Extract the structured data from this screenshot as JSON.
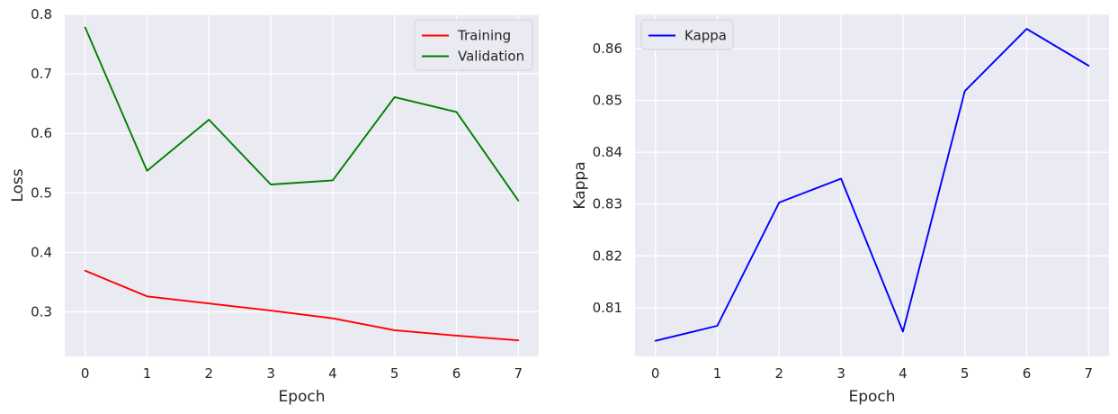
{
  "chart_data": [
    {
      "type": "line",
      "xlabel": "Epoch",
      "ylabel": "Loss",
      "xlim": [
        -0.33,
        7.33
      ],
      "ylim": [
        0.225,
        0.8
      ],
      "xticks": [
        0,
        1,
        2,
        3,
        4,
        5,
        6,
        7
      ],
      "xtick_labels": [
        "0",
        "1",
        "2",
        "3",
        "4",
        "5",
        "6",
        "7"
      ],
      "yticks": [
        0.3,
        0.4,
        0.5,
        0.6,
        0.7,
        0.8
      ],
      "ytick_labels": [
        "0.3",
        "0.4",
        "0.5",
        "0.6",
        "0.7",
        "0.8"
      ],
      "grid": true,
      "legend_position": "top-right",
      "x": [
        0,
        1,
        2,
        3,
        4,
        5,
        6,
        7
      ],
      "series": [
        {
          "name": "Training",
          "color": "#ff0000",
          "values": [
            0.369,
            0.326,
            0.314,
            0.302,
            0.289,
            0.269,
            0.26,
            0.252
          ]
        },
        {
          "name": "Validation",
          "color": "#008000",
          "values": [
            0.778,
            0.537,
            0.623,
            0.514,
            0.521,
            0.661,
            0.636,
            0.487
          ]
        }
      ]
    },
    {
      "type": "line",
      "xlabel": "Epoch",
      "ylabel": "Kappa",
      "xlim": [
        -0.33,
        7.33
      ],
      "ylim": [
        0.8006,
        0.8666
      ],
      "xticks": [
        0,
        1,
        2,
        3,
        4,
        5,
        6,
        7
      ],
      "xtick_labels": [
        "0",
        "1",
        "2",
        "3",
        "4",
        "5",
        "6",
        "7"
      ],
      "yticks": [
        0.81,
        0.82,
        0.83,
        0.84,
        0.85,
        0.86
      ],
      "ytick_labels": [
        "0.81",
        "0.82",
        "0.83",
        "0.84",
        "0.85",
        "0.86"
      ],
      "grid": true,
      "legend_position": "top-left",
      "x": [
        0,
        1,
        2,
        3,
        4,
        5,
        6,
        7
      ],
      "series": [
        {
          "name": "Kappa",
          "color": "#0000ff",
          "values": [
            0.8036,
            0.8065,
            0.8303,
            0.8349,
            0.8054,
            0.8518,
            0.8638,
            0.8567
          ]
        }
      ]
    }
  ]
}
